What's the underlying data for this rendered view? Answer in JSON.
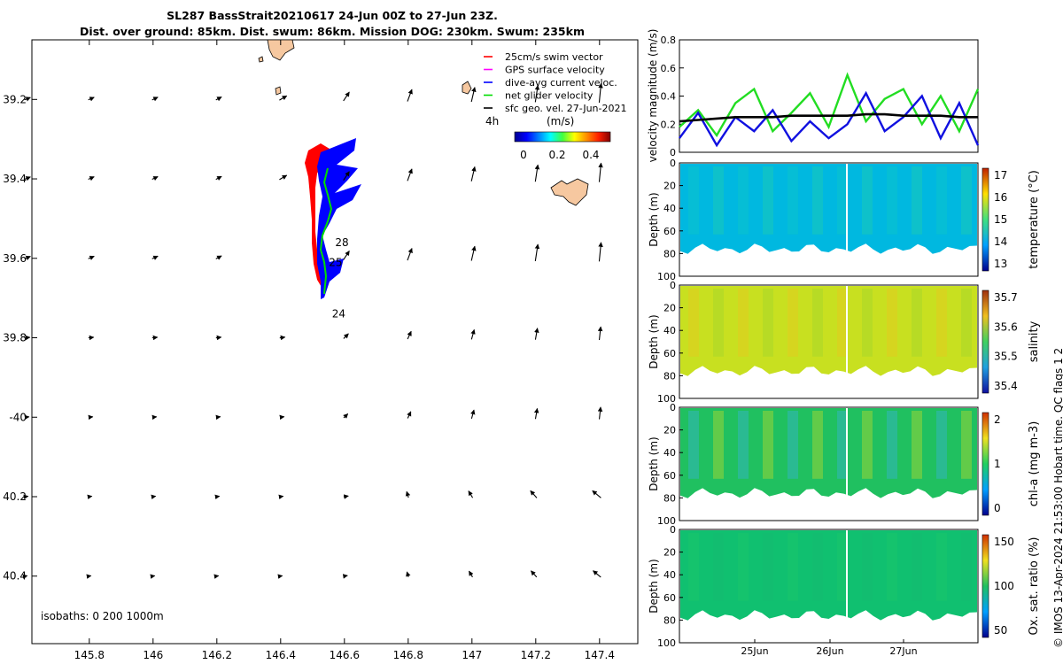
{
  "title_line1": "SL287 BassStrait20210617 24-Jun 00Z to 27-Jun 23Z.",
  "title_line2": "Dist. over ground: 85km. Dist. swum: 86km. Mission DOG: 230km. Swum: 235km",
  "credit": "© IMOS 13-Apr-2024 21:53:00 Hobart time. QC flags 1  2",
  "map": {
    "lon_ticks": [
      "145.8",
      "146",
      "146.2",
      "146.4",
      "146.6",
      "146.8",
      "147",
      "147.2",
      "147.4"
    ],
    "lat_ticks": [
      "39.2",
      "39.4",
      "39.6",
      "39.8",
      "-40",
      "40.2",
      "40.4"
    ],
    "lon_range": [
      145.62,
      147.52
    ],
    "lat_range": [
      -39.05,
      -40.57
    ],
    "isobaths_label": "isobaths: 0   200  1000m",
    "legend": [
      {
        "label": "25cm/s swim vector",
        "color": "#ff0000"
      },
      {
        "label": "GPS surface velocity",
        "color": "#ff00ff"
      },
      {
        "label": "dive-avg current veloc.",
        "color": "#0000ff"
      },
      {
        "label": "net glider velocity",
        "color": "#00dd00"
      },
      {
        "label": "sfc geo. vel. 27-Jun-2021",
        "color": "#000000"
      }
    ],
    "legend_4h": "4h",
    "colorbar_unit": "(m/s)",
    "colorbar_ticks": [
      "0",
      "0.2",
      "0.4"
    ],
    "track_labels": [
      {
        "text": "28",
        "lon": 146.56,
        "lat": -39.56
      },
      {
        "text": "25",
        "lon": 146.54,
        "lat": -39.61
      },
      {
        "text": "24",
        "lon": 146.55,
        "lat": -39.74
      }
    ]
  },
  "panels": {
    "velocity": {
      "ylabel": "velocity magnitude (m/s)",
      "yticks": [
        "0",
        "0.2",
        "0.4",
        "0.6",
        "0.8"
      ]
    },
    "sections": [
      {
        "ylabel": "Depth (m)",
        "cblabel": "temperature (°C)",
        "cbticks": [
          "17",
          "16",
          "15",
          "14",
          "13"
        ],
        "colors": [
          "#00b8e0",
          "#10c8c0",
          "#28d0a0"
        ]
      },
      {
        "ylabel": "Depth (m)",
        "cblabel": "salinity",
        "cbticks": [
          "35.7",
          "35.6",
          "35.5",
          "35.4"
        ],
        "colors": [
          "#c8e020",
          "#f0c020",
          "#98d030"
        ]
      },
      {
        "ylabel": "Depth (m)",
        "cblabel": "chl-a (mg m-3)",
        "cbticks": [
          "2",
          "1",
          "0"
        ],
        "colors": [
          "#20c060",
          "#40b0f0",
          "#e0e020"
        ]
      },
      {
        "ylabel": "Depth (m)",
        "cblabel": "Ox. sat. ratio (%)",
        "cbticks": [
          "150",
          "100",
          "50"
        ],
        "colors": [
          "#10c070",
          "#20c868",
          "#18b870"
        ]
      }
    ],
    "depth_ticks": [
      "0",
      "20",
      "40",
      "60",
      "80",
      "100"
    ],
    "date_ticks": [
      "25Jun",
      "26Jun",
      "27Jun"
    ]
  },
  "chart_data": {
    "type": "line",
    "title": "velocity magnitude",
    "ylabel": "velocity magnitude (m/s)",
    "ylim": [
      0,
      0.8
    ],
    "x_days": [
      0,
      0.25,
      0.5,
      0.75,
      1.0,
      1.25,
      1.5,
      1.75,
      2.0,
      2.25,
      2.5,
      2.75,
      3.0,
      3.25,
      3.5,
      3.75,
      4.0
    ],
    "series": [
      {
        "name": "net glider velocity",
        "color": "#22dd22",
        "values": [
          0.18,
          0.3,
          0.12,
          0.35,
          0.45,
          0.15,
          0.28,
          0.42,
          0.18,
          0.55,
          0.22,
          0.38,
          0.45,
          0.2,
          0.4,
          0.15,
          0.45
        ]
      },
      {
        "name": "dive-avg current veloc.",
        "color": "#1010e0",
        "values": [
          0.1,
          0.28,
          0.05,
          0.25,
          0.15,
          0.3,
          0.08,
          0.22,
          0.1,
          0.2,
          0.42,
          0.15,
          0.25,
          0.4,
          0.1,
          0.35,
          0.05
        ]
      },
      {
        "name": "sfc geo. vel.",
        "color": "#000000",
        "values": [
          0.22,
          0.23,
          0.24,
          0.25,
          0.25,
          0.25,
          0.26,
          0.26,
          0.26,
          0.26,
          0.27,
          0.27,
          0.26,
          0.26,
          0.26,
          0.25,
          0.25
        ]
      }
    ]
  }
}
